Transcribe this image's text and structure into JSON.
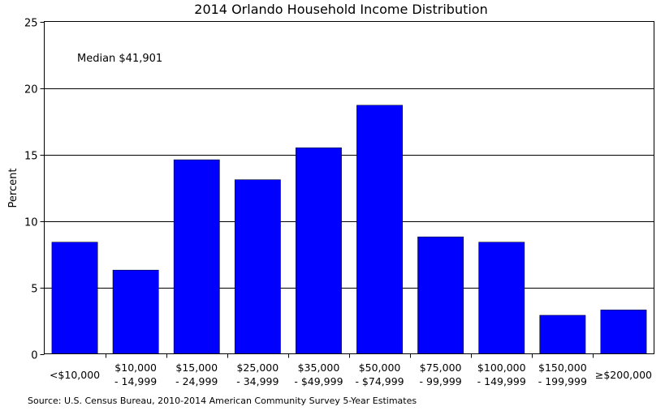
{
  "chart_data": {
    "type": "bar",
    "title": "2014 Orlando Household Income Distribution",
    "xlabel": "",
    "ylabel": "Percent",
    "ylim": [
      0,
      25
    ],
    "yticks": [
      "0",
      "5",
      "10",
      "15",
      "20",
      "25"
    ],
    "grid": true,
    "annotation": "Median $41,901",
    "categories": [
      [
        "<$10,000"
      ],
      [
        "$10,000",
        "- 14,999"
      ],
      [
        "$15,000",
        "- 24,999"
      ],
      [
        "$25,000",
        "- 34,999"
      ],
      [
        "$35,000",
        "- $49,999"
      ],
      [
        "$50,000",
        "- $74,999"
      ],
      [
        "$75,000",
        "- 99,999"
      ],
      [
        "$100,000",
        "- 149,999"
      ],
      [
        "$150,000",
        "- 199,999"
      ],
      [
        "≥$200,000"
      ]
    ],
    "values": [
      8.4,
      6.3,
      14.6,
      13.1,
      15.5,
      18.7,
      8.8,
      8.4,
      2.9,
      3.3
    ],
    "source": "Source: U.S. Census Bureau, 2010-2014 American Community Survey 5-Year Estimates"
  }
}
